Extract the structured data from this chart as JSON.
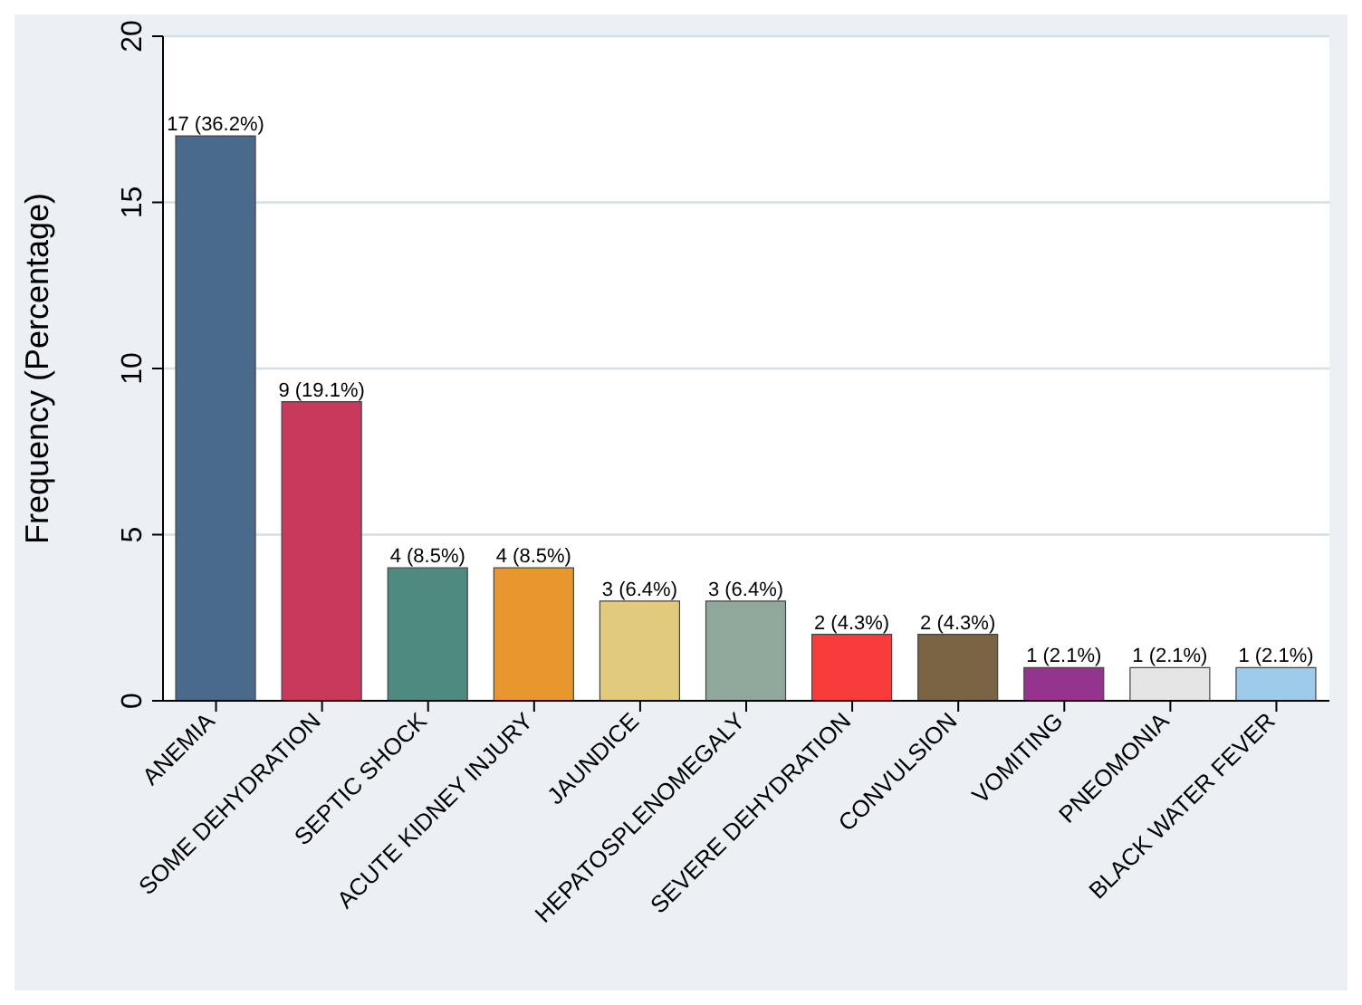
{
  "chart_data": {
    "type": "bar",
    "ylabel": "Frequency (Percentage)",
    "categories": [
      "ANEMIA",
      "SOME DEHYDRATION",
      "SEPTIC SHOCK",
      "ACUTE  KIDNEY INJURY",
      "JAUNDICE",
      "HEPATOSPLENOMEGALY",
      "SEVERE DEHYDRATION",
      "CONVULSION",
      "VOMITING",
      "PNEOMONIA",
      "BLACK WATER FEVER"
    ],
    "values": [
      17,
      9,
      4,
      4,
      3,
      3,
      2,
      2,
      1,
      1,
      1
    ],
    "colors": [
      "#4a6a8b",
      "#c9395b",
      "#4f8a80",
      "#e8972f",
      "#e1ca7c",
      "#8fa89b",
      "#f83b3b",
      "#7a6443",
      "#95348f",
      "#e5e5e5",
      "#9ecbe9"
    ],
    "value_labels": [
      "17 (36.2%)",
      "9 (19.1%)",
      "4 (8.5%)",
      "4 (8.5%)",
      "3 (6.4%)",
      "3 (6.4%)",
      "2 (4.3%)",
      "2 (4.3%)",
      "1 (2.1%)",
      "1 (2.1%)",
      "1 (2.1%)"
    ],
    "ylim": [
      0,
      20
    ],
    "yticks": [
      0,
      5,
      10,
      15,
      20
    ],
    "grid": "y"
  }
}
